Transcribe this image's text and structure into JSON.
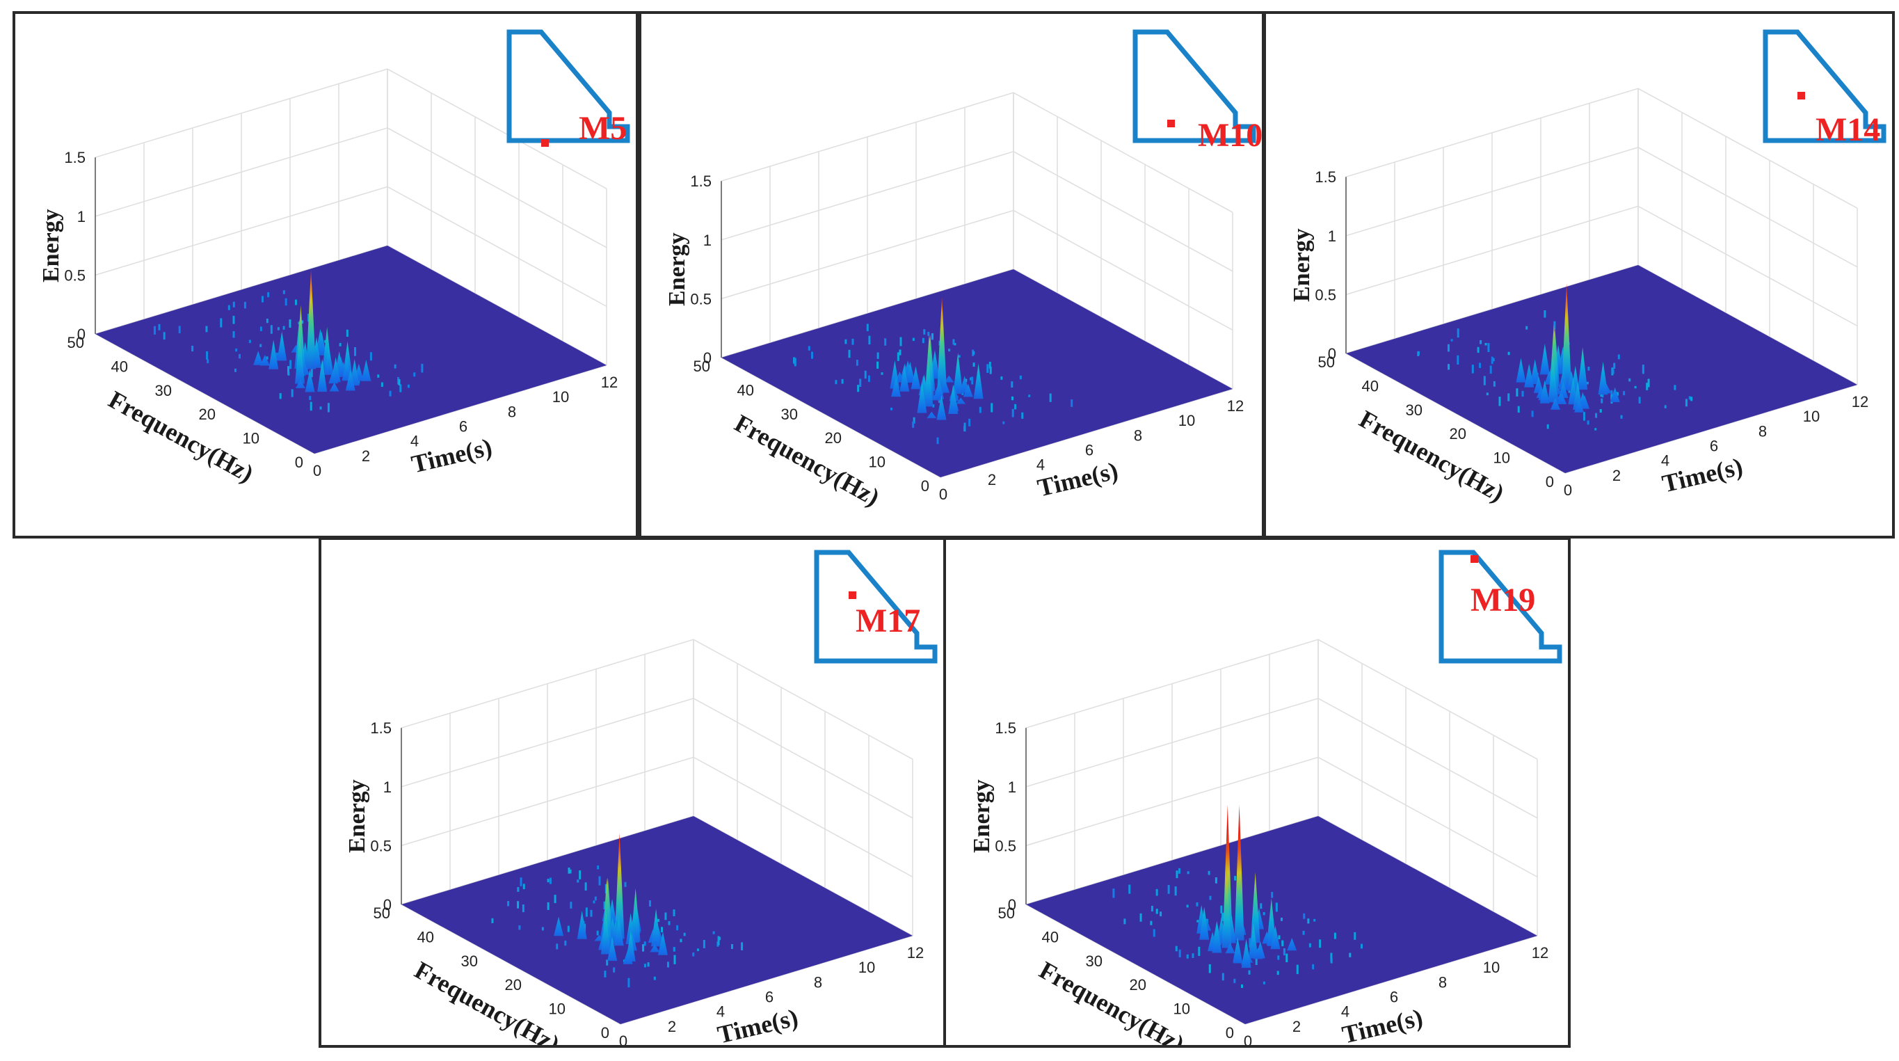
{
  "colors": {
    "floor": "#3a2fa0",
    "grid": "#dedede",
    "axis": "#555555",
    "inset_outline": "#1a82c8",
    "marker": "#ee2222",
    "frame": "#2a2a2a"
  },
  "axes": {
    "zlabel": "Energy",
    "xlabel": "Frequency(Hz)",
    "ylabel": "Time(s)",
    "zticks": [
      "0",
      "0.5",
      "1",
      "1.5"
    ],
    "xticks": [
      "0",
      "10",
      "20",
      "30",
      "40",
      "50"
    ],
    "yticks": [
      "0",
      "2",
      "4",
      "6",
      "8",
      "10",
      "12"
    ]
  },
  "chart_data": [
    {
      "type": "surface",
      "title": "M5",
      "xlabel": "Frequency(Hz)",
      "ylabel": "Time(s)",
      "zlabel": "Energy",
      "xlim": [
        0,
        50
      ],
      "ylim": [
        0,
        12
      ],
      "zlim": [
        0,
        1.5
      ],
      "peaks": [
        {
          "freq": 20,
          "time": 3.0,
          "energy": 0.45
        },
        {
          "freq": 22,
          "time": 3.4,
          "energy": 0.6
        },
        {
          "freq": 24,
          "time": 3.7,
          "energy": 0.42
        },
        {
          "freq": 23,
          "time": 4.0,
          "energy": 0.85
        },
        {
          "freq": 21,
          "time": 4.3,
          "energy": 0.38
        },
        {
          "freq": 18,
          "time": 4.6,
          "energy": 0.3
        },
        {
          "freq": 16,
          "time": 3.2,
          "energy": 0.28
        },
        {
          "freq": 26,
          "time": 3.0,
          "energy": 0.25
        },
        {
          "freq": 14,
          "time": 4.0,
          "energy": 0.18
        }
      ],
      "sensor_position": {
        "label": "M5"
      }
    },
    {
      "type": "surface",
      "title": "M10",
      "xlabel": "Frequency(Hz)",
      "ylabel": "Time(s)",
      "zlabel": "Energy",
      "xlim": [
        0,
        50
      ],
      "ylim": [
        0,
        12
      ],
      "zlim": [
        0,
        1.5
      ],
      "peaks": [
        {
          "freq": 20,
          "time": 3.1,
          "energy": 0.4
        },
        {
          "freq": 22,
          "time": 3.5,
          "energy": 0.55
        },
        {
          "freq": 24,
          "time": 3.9,
          "energy": 0.48
        },
        {
          "freq": 23,
          "time": 4.2,
          "energy": 0.8
        },
        {
          "freq": 21,
          "time": 4.5,
          "energy": 0.35
        },
        {
          "freq": 18,
          "time": 4.8,
          "energy": 0.3
        },
        {
          "freq": 16,
          "time": 3.4,
          "energy": 0.25
        },
        {
          "freq": 26,
          "time": 3.2,
          "energy": 0.22
        }
      ],
      "sensor_position": {
        "label": "M10"
      }
    },
    {
      "type": "surface",
      "title": "M14",
      "xlabel": "Frequency(Hz)",
      "ylabel": "Time(s)",
      "zlabel": "Energy",
      "xlim": [
        0,
        50
      ],
      "ylim": [
        0,
        12
      ],
      "zlim": [
        0,
        1.5
      ],
      "peaks": [
        {
          "freq": 20,
          "time": 3.1,
          "energy": 0.42
        },
        {
          "freq": 22,
          "time": 3.5,
          "energy": 0.6
        },
        {
          "freq": 24,
          "time": 3.9,
          "energy": 0.5
        },
        {
          "freq": 23,
          "time": 4.2,
          "energy": 0.88
        },
        {
          "freq": 21,
          "time": 4.5,
          "energy": 0.36
        },
        {
          "freq": 18,
          "time": 4.8,
          "energy": 0.28
        },
        {
          "freq": 16,
          "time": 3.4,
          "energy": 0.24
        },
        {
          "freq": 26,
          "time": 3.2,
          "energy": 0.2
        }
      ],
      "sensor_position": {
        "label": "M14"
      }
    },
    {
      "type": "surface",
      "title": "M17",
      "xlabel": "Frequency(Hz)",
      "ylabel": "Time(s)",
      "zlabel": "Energy",
      "xlim": [
        0,
        50
      ],
      "ylim": [
        0,
        12
      ],
      "zlim": [
        0,
        1.5
      ],
      "peaks": [
        {
          "freq": 20,
          "time": 3.0,
          "energy": 0.38
        },
        {
          "freq": 22,
          "time": 3.4,
          "energy": 0.58
        },
        {
          "freq": 24,
          "time": 3.8,
          "energy": 0.52
        },
        {
          "freq": 23,
          "time": 4.1,
          "energy": 0.9
        },
        {
          "freq": 21,
          "time": 4.4,
          "energy": 0.45
        },
        {
          "freq": 18,
          "time": 4.7,
          "energy": 0.32
        },
        {
          "freq": 16,
          "time": 3.3,
          "energy": 0.26
        },
        {
          "freq": 26,
          "time": 3.1,
          "energy": 0.24
        }
      ],
      "sensor_position": {
        "label": "M17"
      }
    },
    {
      "type": "surface",
      "title": "M19",
      "xlabel": "Frequency(Hz)",
      "ylabel": "Time(s)",
      "zlabel": "Energy",
      "xlim": [
        0,
        50
      ],
      "ylim": [
        0,
        12
      ],
      "zlim": [
        0,
        1.5
      ],
      "peaks": [
        {
          "freq": 22,
          "time": 3.2,
          "energy": 0.7
        },
        {
          "freq": 24,
          "time": 3.6,
          "energy": 1.15
        },
        {
          "freq": 23,
          "time": 3.9,
          "energy": 1.15
        },
        {
          "freq": 21,
          "time": 4.2,
          "energy": 0.6
        },
        {
          "freq": 19,
          "time": 4.5,
          "energy": 0.4
        },
        {
          "freq": 17,
          "time": 3.4,
          "energy": 0.3
        },
        {
          "freq": 26,
          "time": 3.0,
          "energy": 0.28
        }
      ],
      "sensor_position": {
        "label": "M19"
      }
    }
  ]
}
